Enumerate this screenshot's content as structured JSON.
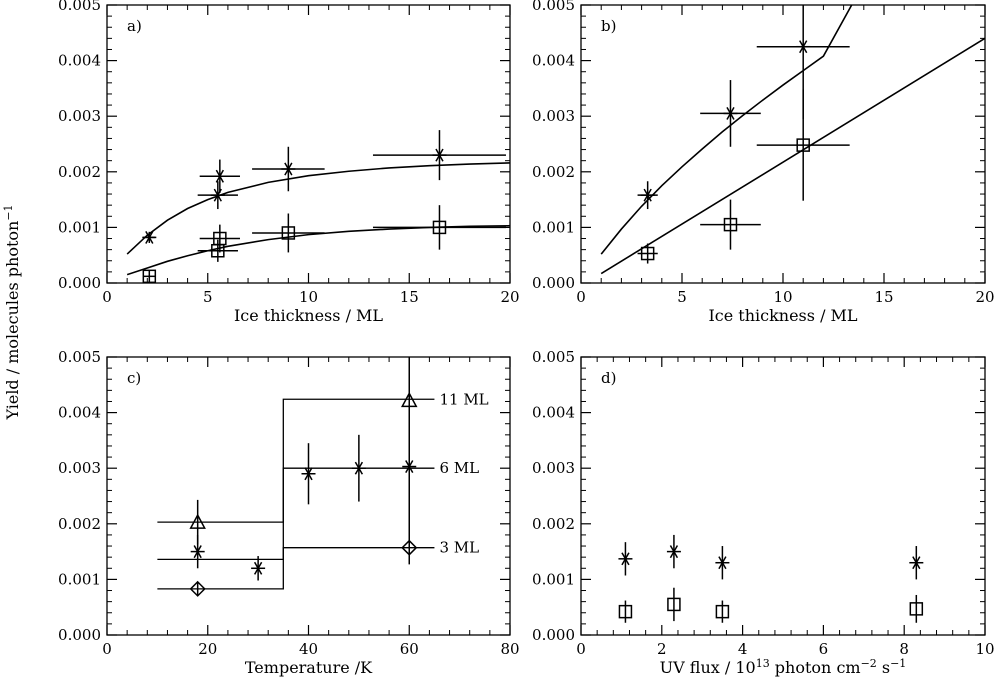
{
  "ylabel": "Yield / molecules photon",
  "ylabel_sup": "−1",
  "chart_data": [
    {
      "panel": "a)",
      "type": "scatter",
      "xlabel": "Ice thickness / ML",
      "xlim": [
        0,
        20
      ],
      "ylim": [
        0,
        0.005
      ],
      "xticks": [
        0,
        5,
        10,
        15,
        20
      ],
      "yticks": [
        0.0,
        0.001,
        0.002,
        0.003,
        0.004,
        0.005
      ],
      "series": [
        {
          "marker": "asterisk",
          "points": [
            {
              "x": 2.1,
              "y": 0.00082,
              "xerr": 0.3,
              "yerr": 0.0001
            },
            {
              "x": 5.5,
              "y": 0.00158,
              "xerr": 1.0,
              "yerr": 0.00025
            },
            {
              "x": 5.6,
              "y": 0.00192,
              "xerr": 1.0,
              "yerr": 0.0003
            },
            {
              "x": 9.0,
              "y": 0.00205,
              "xerr": 1.8,
              "yerr": 0.0004
            },
            {
              "x": 16.5,
              "y": 0.0023,
              "xerr": 3.3,
              "yerr": 0.00045
            }
          ],
          "fit": {
            "x": [
              1,
              2,
              3,
              4,
              5,
              6,
              8,
              10,
              12,
              14,
              16,
              18,
              20
            ],
            "y": [
              0.00052,
              0.00086,
              0.00113,
              0.00134,
              0.0015,
              0.00163,
              0.00181,
              0.00193,
              0.00201,
              0.00207,
              0.00211,
              0.00214,
              0.00216
            ]
          }
        },
        {
          "marker": "square",
          "points": [
            {
              "x": 2.1,
              "y": 0.00012,
              "xerr": 0.3,
              "yerr": 0.0001
            },
            {
              "x": 5.5,
              "y": 0.00058,
              "xerr": 1.0,
              "yerr": 0.0002
            },
            {
              "x": 5.6,
              "y": 0.0008,
              "xerr": 1.0,
              "yerr": 0.00025
            },
            {
              "x": 9.0,
              "y": 0.0009,
              "xerr": 1.8,
              "yerr": 0.00035
            },
            {
              "x": 16.5,
              "y": 0.001,
              "xerr": 3.3,
              "yerr": 0.0004
            }
          ],
          "fit": {
            "x": [
              1,
              2,
              3,
              4,
              5,
              6,
              8,
              10,
              12,
              14,
              16,
              18,
              20
            ],
            "y": [
              0.00015,
              0.00027,
              0.00039,
              0.00049,
              0.00058,
              0.00066,
              0.00078,
              0.00087,
              0.00093,
              0.00097,
              0.001,
              0.00102,
              0.00103
            ]
          }
        }
      ]
    },
    {
      "panel": "b)",
      "type": "scatter",
      "xlabel": "Ice thickness / ML",
      "xlim": [
        0,
        20
      ],
      "ylim": [
        0,
        0.005
      ],
      "xticks": [
        0,
        5,
        10,
        15,
        20
      ],
      "yticks": [
        0.0,
        0.001,
        0.002,
        0.003,
        0.004,
        0.005
      ],
      "series": [
        {
          "marker": "asterisk",
          "points": [
            {
              "x": 3.3,
              "y": 0.00158,
              "xerr": 0.5,
              "yerr": 0.00025
            },
            {
              "x": 7.4,
              "y": 0.00305,
              "xerr": 1.5,
              "yerr": 0.0006
            },
            {
              "x": 11.0,
              "y": 0.00425,
              "xerr": 2.3,
              "yerr": 0.0013
            }
          ],
          "fit": {
            "x": [
              1,
              2,
              3,
              4,
              5,
              6,
              7,
              8,
              9,
              10,
              11,
              12,
              13.4
            ],
            "y": [
              0.00052,
              0.00097,
              0.00138,
              0.00175,
              0.00209,
              0.00241,
              0.00272,
              0.00301,
              0.00329,
              0.00356,
              0.00382,
              0.00408,
              0.005
            ]
          }
        },
        {
          "marker": "square",
          "points": [
            {
              "x": 3.3,
              "y": 0.00053,
              "xerr": 0.5,
              "yerr": 0.00018
            },
            {
              "x": 7.4,
              "y": 0.00105,
              "xerr": 1.5,
              "yerr": 0.00045
            },
            {
              "x": 11.0,
              "y": 0.00248,
              "xerr": 2.3,
              "yerr": 0.001
            }
          ],
          "fit": {
            "x": [
              1,
              20
            ],
            "y": [
              0.00017,
              0.0044
            ]
          }
        }
      ]
    },
    {
      "panel": "c)",
      "type": "scatter",
      "xlabel": "Temperature /K",
      "xlim": [
        0,
        80
      ],
      "ylim": [
        0,
        0.005
      ],
      "xticks": [
        0,
        20,
        40,
        60,
        80
      ],
      "yticks": [
        0.0,
        0.001,
        0.002,
        0.003,
        0.004,
        0.005
      ],
      "series": [
        {
          "name": "11 ML",
          "marker": "triangle",
          "points": [
            {
              "x": 18,
              "y": 0.00203,
              "yerr": 0.0004
            },
            {
              "x": 60,
              "y": 0.00422,
              "yerr": 0.0008
            }
          ],
          "step": {
            "x": [
              10,
              35,
              35,
              65
            ],
            "y": [
              0.00203,
              0.00203,
              0.00424,
              0.00424
            ]
          }
        },
        {
          "name": "6 ML",
          "marker": "asterisk",
          "points": [
            {
              "x": 18,
              "y": 0.0015,
              "yerr": 0.0003
            },
            {
              "x": 30,
              "y": 0.0012,
              "yerr": 0.00022
            },
            {
              "x": 40,
              "y": 0.0029,
              "yerr": 0.00055
            },
            {
              "x": 50,
              "y": 0.003,
              "yerr": 0.0006
            },
            {
              "x": 60,
              "y": 0.00303,
              "yerr": 0.0012
            }
          ],
          "step": {
            "x": [
              10,
              35,
              35,
              65
            ],
            "y": [
              0.00136,
              0.00136,
              0.003,
              0.003
            ]
          }
        },
        {
          "name": "3 ML",
          "marker": "diamond",
          "points": [
            {
              "x": 18,
              "y": 0.00083,
              "yerr": 0.00012
            },
            {
              "x": 60,
              "y": 0.00157,
              "yerr": 0.0003
            }
          ],
          "step": {
            "x": [
              10,
              35,
              35,
              65
            ],
            "y": [
              0.00083,
              0.00083,
              0.00157,
              0.00157
            ]
          }
        }
      ]
    },
    {
      "panel": "d)",
      "type": "scatter",
      "xlabel": "UV flux / 10",
      "xlabel_sup1": "13",
      "xlabel_mid": " photon cm",
      "xlabel_sup2": "−2",
      "xlabel_mid2": " s",
      "xlabel_sup3": "−1",
      "xlim": [
        0,
        10
      ],
      "ylim": [
        0,
        0.005
      ],
      "xticks": [
        0,
        2,
        4,
        6,
        8,
        10
      ],
      "yticks": [
        0.0,
        0.001,
        0.002,
        0.003,
        0.004,
        0.005
      ],
      "series": [
        {
          "marker": "asterisk",
          "points": [
            {
              "x": 1.1,
              "y": 0.00137,
              "yerr": 0.0003
            },
            {
              "x": 2.3,
              "y": 0.0015,
              "yerr": 0.0003
            },
            {
              "x": 3.5,
              "y": 0.0013,
              "yerr": 0.0003
            },
            {
              "x": 8.3,
              "y": 0.0013,
              "yerr": 0.0003
            }
          ]
        },
        {
          "marker": "square",
          "points": [
            {
              "x": 1.1,
              "y": 0.00042,
              "yerr": 0.0002
            },
            {
              "x": 2.3,
              "y": 0.00055,
              "yerr": 0.0003
            },
            {
              "x": 3.5,
              "y": 0.00042,
              "yerr": 0.0002
            },
            {
              "x": 8.3,
              "y": 0.00047,
              "yerr": 0.00025
            }
          ]
        }
      ]
    }
  ]
}
